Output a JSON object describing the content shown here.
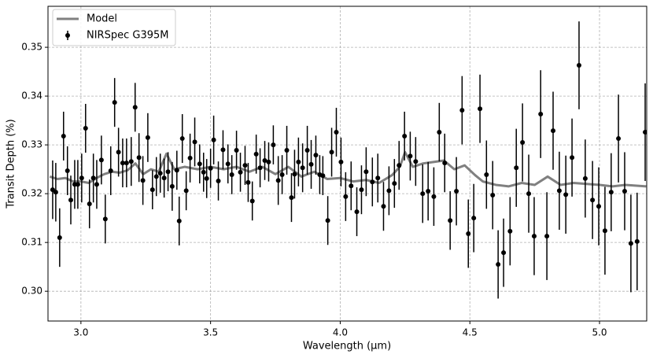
{
  "chart_data": {
    "type": "scatter",
    "xlabel": "Wavelength (μm)",
    "ylabel": "Transit Depth (%)",
    "xlim": [
      2.873,
      5.182
    ],
    "ylim": [
      0.2939,
      0.3584
    ],
    "xticks": [
      {
        "value": 3,
        "label": "3.0"
      },
      3.5,
      {
        "value": 4,
        "label": "4.0"
      },
      4.5,
      {
        "value": 5,
        "label": "5.0"
      }
    ],
    "yticks": [
      {
        "value": 0.3,
        "label": "0.30"
      },
      0.31,
      0.32,
      0.33,
      0.34,
      0.35
    ],
    "grid": true,
    "legend": "upper left",
    "series": [
      {
        "name": "Model",
        "type": "line",
        "color": "#808080",
        "x": [
          2.88,
          2.91,
          2.94,
          2.97,
          3.0,
          3.03,
          3.06,
          3.09,
          3.12,
          3.15,
          3.18,
          3.21,
          3.24,
          3.27,
          3.3,
          3.33,
          3.36,
          3.4,
          3.45,
          3.5,
          3.55,
          3.6,
          3.65,
          3.7,
          3.75,
          3.8,
          3.85,
          3.9,
          3.95,
          4.0,
          4.05,
          4.1,
          4.15,
          4.2,
          4.23,
          4.25,
          4.28,
          4.32,
          4.36,
          4.4,
          4.44,
          4.48,
          4.52,
          4.55,
          4.6,
          4.65,
          4.7,
          4.75,
          4.8,
          4.85,
          4.9,
          4.95,
          5.0,
          5.05,
          5.1,
          5.18
        ],
        "values": [
          0.3235,
          0.323,
          0.3232,
          0.3225,
          0.3225,
          0.3222,
          0.3232,
          0.324,
          0.3245,
          0.3243,
          0.3248,
          0.3262,
          0.324,
          0.325,
          0.3245,
          0.3282,
          0.325,
          0.3255,
          0.325,
          0.3255,
          0.325,
          0.3255,
          0.3245,
          0.3255,
          0.324,
          0.3255,
          0.3235,
          0.3245,
          0.323,
          0.3232,
          0.3225,
          0.3228,
          0.3222,
          0.3238,
          0.3255,
          0.3285,
          0.3255,
          0.3262,
          0.3265,
          0.3268,
          0.325,
          0.3258,
          0.3238,
          0.3225,
          0.3218,
          0.3215,
          0.3222,
          0.3218,
          0.3235,
          0.3218,
          0.3222,
          0.322,
          0.3218,
          0.3215,
          0.3218,
          0.3215
        ]
      },
      {
        "name": "NIRSpec G395M",
        "type": "errorbar",
        "color": "#000000",
        "x": [
          2.891,
          2.903,
          2.918,
          2.933,
          2.948,
          2.961,
          2.976,
          2.988,
          3.003,
          3.018,
          3.033,
          3.048,
          3.061,
          3.079,
          3.094,
          3.115,
          3.13,
          3.145,
          3.161,
          3.176,
          3.194,
          3.209,
          3.224,
          3.239,
          3.258,
          3.276,
          3.291,
          3.306,
          3.321,
          3.336,
          3.352,
          3.37,
          3.379,
          3.391,
          3.406,
          3.421,
          3.439,
          3.458,
          3.473,
          3.485,
          3.5,
          3.512,
          3.53,
          3.548,
          3.567,
          3.582,
          3.6,
          3.615,
          3.633,
          3.645,
          3.661,
          3.676,
          3.691,
          3.709,
          3.724,
          3.742,
          3.761,
          3.776,
          3.794,
          3.812,
          3.824,
          3.839,
          3.855,
          3.873,
          3.888,
          3.906,
          3.921,
          3.933,
          3.952,
          3.967,
          3.985,
          4.003,
          4.021,
          4.042,
          4.064,
          4.082,
          4.1,
          4.124,
          4.145,
          4.167,
          4.188,
          4.209,
          4.227,
          4.248,
          4.27,
          4.291,
          4.318,
          4.339,
          4.361,
          4.382,
          4.403,
          4.424,
          4.448,
          4.47,
          4.494,
          4.515,
          4.539,
          4.564,
          4.588,
          4.609,
          4.63,
          4.655,
          4.679,
          4.703,
          4.727,
          4.748,
          4.773,
          4.797,
          4.821,
          4.845,
          4.87,
          4.894,
          4.921,
          4.945,
          4.973,
          4.997,
          5.021,
          5.045,
          5.073,
          5.097,
          5.121,
          5.145,
          5.176
        ],
        "values": [
          0.3208,
          0.3203,
          0.311,
          0.3318,
          0.3247,
          0.3187,
          0.3219,
          0.3219,
          0.3232,
          0.3334,
          0.3179,
          0.3232,
          0.3219,
          0.3269,
          0.3148,
          0.3247,
          0.3387,
          0.3285,
          0.3263,
          0.3263,
          0.3266,
          0.3377,
          0.3274,
          0.3227,
          0.3315,
          0.3208,
          0.3235,
          0.3242,
          0.3232,
          0.3245,
          0.3215,
          0.3248,
          0.3144,
          0.3313,
          0.3206,
          0.3273,
          0.3306,
          0.3261,
          0.3244,
          0.3231,
          0.3252,
          0.331,
          0.3226,
          0.329,
          0.3261,
          0.3239,
          0.3289,
          0.3244,
          0.3258,
          0.3223,
          0.3185,
          0.3281,
          0.3253,
          0.3268,
          0.3265,
          0.33,
          0.3227,
          0.3239,
          0.3289,
          0.3192,
          0.324,
          0.3265,
          0.3253,
          0.3289,
          0.326,
          0.3279,
          0.3239,
          0.3237,
          0.3145,
          0.3285,
          0.3326,
          0.3265,
          0.3194,
          0.3216,
          0.3163,
          0.3208,
          0.3245,
          0.3224,
          0.3232,
          0.3174,
          0.3206,
          0.3221,
          0.3258,
          0.3318,
          0.3277,
          0.3266,
          0.32,
          0.3205,
          0.3194,
          0.3326,
          0.3263,
          0.3145,
          0.3205,
          0.3371,
          0.3118,
          0.315,
          0.3374,
          0.3239,
          0.3197,
          0.3055,
          0.3079,
          0.3123,
          0.3253,
          0.3305,
          0.32,
          0.3113,
          0.3363,
          0.3113,
          0.3329,
          0.3206,
          0.3198,
          0.3274,
          0.3463,
          0.3231,
          0.3187,
          0.3174,
          0.3124,
          0.3203,
          0.3313,
          0.3205,
          0.3098,
          0.3102,
          0.3326
        ],
        "errors": [
          0.006,
          0.006,
          0.006,
          0.005,
          0.005,
          0.005,
          0.005,
          0.005,
          0.005,
          0.005,
          0.005,
          0.005,
          0.005,
          0.005,
          0.005,
          0.005,
          0.005,
          0.005,
          0.005,
          0.005,
          0.005,
          0.005,
          0.005,
          0.005,
          0.005,
          0.004,
          0.004,
          0.004,
          0.004,
          0.004,
          0.005,
          0.004,
          0.005,
          0.005,
          0.004,
          0.005,
          0.005,
          0.004,
          0.004,
          0.004,
          0.004,
          0.005,
          0.004,
          0.004,
          0.004,
          0.004,
          0.004,
          0.004,
          0.004,
          0.004,
          0.004,
          0.004,
          0.004,
          0.004,
          0.004,
          0.004,
          0.005,
          0.004,
          0.005,
          0.005,
          0.005,
          0.005,
          0.005,
          0.005,
          0.005,
          0.004,
          0.004,
          0.004,
          0.005,
          0.005,
          0.005,
          0.005,
          0.005,
          0.005,
          0.005,
          0.005,
          0.005,
          0.005,
          0.005,
          0.005,
          0.005,
          0.005,
          0.005,
          0.005,
          0.005,
          0.005,
          0.006,
          0.006,
          0.006,
          0.006,
          0.006,
          0.006,
          0.007,
          0.007,
          0.007,
          0.007,
          0.007,
          0.007,
          0.007,
          0.007,
          0.007,
          0.007,
          0.008,
          0.008,
          0.008,
          0.008,
          0.009,
          0.009,
          0.008,
          0.008,
          0.008,
          0.008,
          0.009,
          0.008,
          0.008,
          0.008,
          0.009,
          0.008,
          0.009,
          0.008,
          0.01,
          0.01,
          0.01
        ]
      }
    ]
  }
}
